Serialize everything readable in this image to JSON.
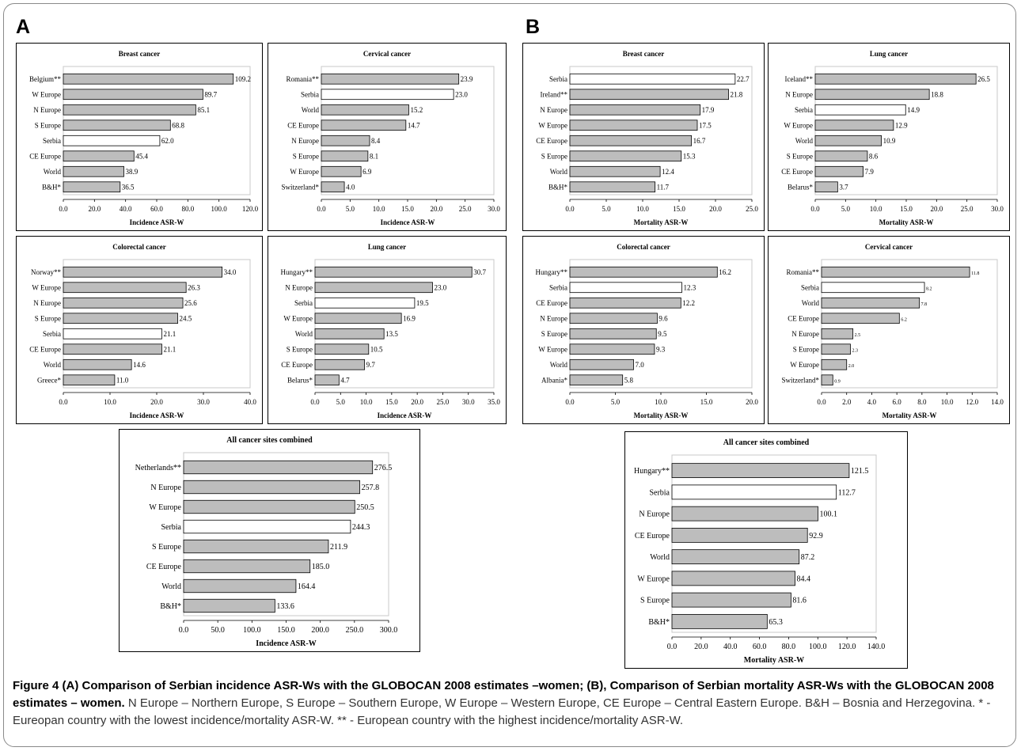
{
  "panels": {
    "a": "A",
    "b": "B"
  },
  "caption": {
    "title": "Figure 4 (A) Comparison of Serbian incidence ASR-Ws with the GLOBOCAN 2008 estimates –women; (B), Comparison of Serbian mortality ASR-Ws with the GLOBOCAN 2008 estimates – women.",
    "text": " N Europe – Northern Europe, S Europe – Southern Europe, W Europe – Western Europe, CE Europe – Central Eastern Europe. B&H – Bosnia and Herzegovina. * - Eureopan country with the lowest incidence/mortality ASR-W. ** - European country with the highest incidence/mortality ASR-W."
  },
  "colors": {
    "bar": "#bdbdbd",
    "highlight_bar": "#ffffff",
    "bar_stroke": "#000000",
    "frame": "#8a8a8a"
  },
  "chart_data": [
    {
      "id": "a-breast",
      "panel": "A",
      "type": "bar",
      "orientation": "horizontal",
      "title": "Breast cancer",
      "xlabel": "Incidence ASR-W",
      "xlim": [
        0,
        120
      ],
      "ticks": [
        "0.0",
        "20.0",
        "40.0",
        "60.0",
        "80.0",
        "100.0",
        "120.0"
      ],
      "categories": [
        "Belgium**",
        "W Europe",
        "N Europe",
        "S Europe",
        "Serbia",
        "CE Europe",
        "World",
        "B&H*"
      ],
      "values": [
        109.2,
        89.7,
        85.1,
        68.8,
        62.0,
        45.4,
        38.9,
        36.5
      ],
      "labels": [
        "109.2",
        "89.7",
        "85.1",
        "68.8",
        "62.0",
        "45.4",
        "38.9",
        "36.5"
      ],
      "highlight": "Serbia"
    },
    {
      "id": "a-cervical",
      "panel": "A",
      "type": "bar",
      "orientation": "horizontal",
      "title": "Cervical cancer",
      "xlabel": "Incidence ASR-W",
      "xlim": [
        0,
        30
      ],
      "ticks": [
        "0.0",
        "5.0",
        "10.0",
        "15.0",
        "20.0",
        "25.0",
        "30.0"
      ],
      "categories": [
        "Romania**",
        "Serbia",
        "World",
        "CE Europe",
        "N Europe",
        "S Europe",
        "W Europe",
        "Switzerland*"
      ],
      "values": [
        23.9,
        23.0,
        15.2,
        14.7,
        8.4,
        8.1,
        6.9,
        4.0
      ],
      "labels": [
        "23.9",
        "23.0",
        "15.2",
        "14.7",
        "8.4",
        "8.1",
        "6.9",
        "4.0"
      ],
      "highlight": "Serbia"
    },
    {
      "id": "a-colorectal",
      "panel": "A",
      "type": "bar",
      "orientation": "horizontal",
      "title": "Colorectal cancer",
      "xlabel": "Incidence ASR-W",
      "xlim": [
        0,
        40
      ],
      "ticks": [
        "0.0",
        "10.0",
        "20.0",
        "30.0",
        "40.0"
      ],
      "categories": [
        "Norway**",
        "W Europe",
        "N Europe",
        "S Europe",
        "Serbia",
        "CE Europe",
        "World",
        "Greece*"
      ],
      "values": [
        34.0,
        26.3,
        25.6,
        24.5,
        21.1,
        21.1,
        14.6,
        11.0
      ],
      "labels": [
        "34.0",
        "26.3",
        "25.6",
        "24.5",
        "21.1",
        "21.1",
        "14.6",
        "11.0"
      ],
      "highlight": "Serbia"
    },
    {
      "id": "a-lung",
      "panel": "A",
      "type": "bar",
      "orientation": "horizontal",
      "title": "Lung cancer",
      "xlabel": "Incidence ASR-W",
      "xlim": [
        0,
        35
      ],
      "ticks": [
        "0.0",
        "5.0",
        "10.0",
        "15.0",
        "20.0",
        "25.0",
        "30.0",
        "35.0"
      ],
      "categories": [
        "Hungary**",
        "N Europe",
        "Serbia",
        "W Europe",
        "World",
        "S Europe",
        "CE Europe",
        "Belarus*"
      ],
      "values": [
        30.7,
        23.0,
        19.5,
        16.9,
        13.5,
        10.5,
        9.7,
        4.7
      ],
      "labels": [
        "30.7",
        "23.0",
        "19.5",
        "16.9",
        "13.5",
        "10.5",
        "9.7",
        "4.7"
      ],
      "highlight": "Serbia"
    },
    {
      "id": "a-all",
      "panel": "A",
      "type": "bar",
      "orientation": "horizontal",
      "title": "All cancer sites combined",
      "xlabel": "Incidence ASR-W",
      "xlim": [
        0,
        300
      ],
      "ticks": [
        "0.0",
        "50.0",
        "100.0",
        "150.0",
        "200.0",
        "250.0",
        "300.0"
      ],
      "categories": [
        "Netherlands**",
        "N Europe",
        "W Europe",
        "Serbia",
        "S Europe",
        "CE Europe",
        "World",
        "B&H*"
      ],
      "values": [
        276.5,
        257.8,
        250.5,
        244.3,
        211.9,
        185.0,
        164.4,
        133.6
      ],
      "labels": [
        "276.5",
        "257.8",
        "250.5",
        "244.3",
        "211.9",
        "185.0",
        "164.4",
        "133.6"
      ],
      "highlight": "Serbia"
    },
    {
      "id": "b-breast",
      "panel": "B",
      "type": "bar",
      "orientation": "horizontal",
      "title": "Breast cancer",
      "xlabel": "Mortality ASR-W",
      "xlim": [
        0,
        25
      ],
      "ticks": [
        "0.0",
        "5.0",
        "10.0",
        "15.0",
        "20.0",
        "25.0"
      ],
      "categories": [
        "Serbia",
        "Ireland**",
        "N Europe",
        "W Europe",
        "CE Europe",
        "S Europe",
        "World",
        "B&H*"
      ],
      "values": [
        22.7,
        21.8,
        17.9,
        17.5,
        16.7,
        15.3,
        12.4,
        11.7
      ],
      "labels": [
        "22.7",
        "21.8",
        "17.9",
        "17.5",
        "16.7",
        "15.3",
        "12.4",
        "11.7"
      ],
      "highlight": "Serbia"
    },
    {
      "id": "b-lung",
      "panel": "B",
      "type": "bar",
      "orientation": "horizontal",
      "title": "Lung cancer",
      "xlabel": "Mortality ASR-W",
      "xlim": [
        0,
        30
      ],
      "ticks": [
        "0.0",
        "5.0",
        "10.0",
        "15.0",
        "20.0",
        "25.0",
        "30.0"
      ],
      "categories": [
        "Iceland**",
        "N Europe",
        "Serbia",
        "W Europe",
        "World",
        "S Europe",
        "CE Europe",
        "Belarus*"
      ],
      "values": [
        26.5,
        18.8,
        14.9,
        12.9,
        10.9,
        8.6,
        7.9,
        3.7
      ],
      "labels": [
        "26.5",
        "18.8",
        "14.9",
        "12.9",
        "10.9",
        "8.6",
        "7.9",
        "3.7"
      ],
      "highlight": "Serbia"
    },
    {
      "id": "b-colorectal",
      "panel": "B",
      "type": "bar",
      "orientation": "horizontal",
      "title": "Colorectal cancer",
      "xlabel": "Mortality ASR-W",
      "xlim": [
        0,
        20
      ],
      "ticks": [
        "0.0",
        "5.0",
        "10.0",
        "15.0",
        "20.0"
      ],
      "categories": [
        "Hungary**",
        "Serbia",
        "CE Europe",
        "N Europe",
        "S Europe",
        "W Europe",
        "World",
        "Albania*"
      ],
      "values": [
        16.2,
        12.3,
        12.2,
        9.6,
        9.5,
        9.3,
        7.0,
        5.8
      ],
      "labels": [
        "16.2",
        "12.3",
        "12.2",
        "9.6",
        "9.5",
        "9.3",
        "7.0",
        "5.8"
      ],
      "highlight": "Serbia"
    },
    {
      "id": "b-cervical",
      "panel": "B",
      "type": "bar",
      "orientation": "horizontal",
      "title": "Cervical cancer",
      "xlabel": "Mortality ASR-W",
      "xlim": [
        0,
        14
      ],
      "ticks": [
        "0.0",
        "2.0",
        "4.0",
        "6.0",
        "8.0",
        "10.0",
        "12.0",
        "14.0"
      ],
      "categories": [
        "Romania**",
        "Serbia",
        "World",
        "CE Europe",
        "N Europe",
        "S Europe",
        "W Europe",
        "Switzerland*"
      ],
      "values": [
        11.8,
        8.2,
        7.8,
        6.2,
        2.5,
        2.3,
        2.0,
        0.9
      ],
      "labels": [
        "11.8",
        "8.2",
        "7.8",
        "6.2",
        "2.5",
        "2.3",
        "2.0",
        "0.9"
      ],
      "highlight": "Serbia"
    },
    {
      "id": "b-all",
      "panel": "B",
      "type": "bar",
      "orientation": "horizontal",
      "title": "All cancer sites combined",
      "xlabel": "Mortality ASR-W",
      "xlim": [
        0,
        140
      ],
      "ticks": [
        "0.0",
        "20.0",
        "40.0",
        "60.0",
        "80.0",
        "100.0",
        "120.0",
        "140.0"
      ],
      "categories": [
        "Hungary**",
        "Serbia",
        "N Europe",
        "CE Europe",
        "World",
        "W Europe",
        "S Europe",
        "B&H*"
      ],
      "values": [
        121.5,
        112.7,
        100.1,
        92.9,
        87.2,
        84.4,
        81.6,
        65.3
      ],
      "labels": [
        "121.5",
        "112.7",
        "100.1",
        "92.9",
        "87.2",
        "84.4",
        "81.6",
        "65.3"
      ],
      "highlight": "Serbia"
    }
  ]
}
